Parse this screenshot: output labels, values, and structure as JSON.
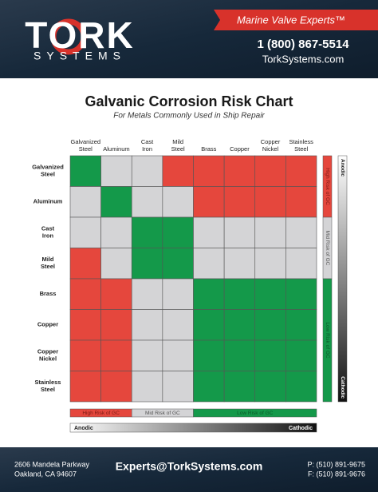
{
  "header": {
    "logo_name": "TORK",
    "logo_sub": "SYSTEMS",
    "tagline": "Marine Valve Experts™",
    "phone": "1 (800) 867-5514",
    "website": "TorkSystems.com"
  },
  "title": "Galvanic Corrosion Risk Chart",
  "subtitle": "For Metals Commonly Used in Ship Repair",
  "metals": [
    [
      "Galvanized",
      "Steel"
    ],
    [
      "Aluminum"
    ],
    [
      "Cast",
      "Iron"
    ],
    [
      "Mild",
      "Steel"
    ],
    [
      "Brass"
    ],
    [
      "Copper"
    ],
    [
      "Copper",
      "Nickel"
    ],
    [
      "Stainless",
      "Steel"
    ]
  ],
  "legend": [
    {
      "label": "High Risk of GC",
      "color": "#e5473d"
    },
    {
      "label": "Mid Risk of GC",
      "color": "#d4d4d6"
    },
    {
      "label": "Low Risk of GC",
      "color": "#14994a"
    }
  ],
  "matrix": [
    [
      2,
      1,
      1,
      0,
      0,
      0,
      0,
      0
    ],
    [
      1,
      2,
      1,
      1,
      0,
      0,
      0,
      0
    ],
    [
      1,
      1,
      2,
      2,
      1,
      1,
      1,
      1
    ],
    [
      0,
      1,
      2,
      2,
      1,
      1,
      1,
      1
    ],
    [
      0,
      0,
      1,
      1,
      2,
      2,
      2,
      2
    ],
    [
      0,
      0,
      1,
      1,
      2,
      2,
      2,
      2
    ],
    [
      0,
      0,
      1,
      1,
      2,
      2,
      2,
      2
    ],
    [
      0,
      0,
      1,
      1,
      2,
      2,
      2,
      2
    ]
  ],
  "scale": {
    "start": "Anodic",
    "end": "Cathodic"
  },
  "footer": {
    "address": [
      "2606 Mandela Parkway",
      "Oakland, CA 94607"
    ],
    "email": "Experts@TorkSystems.com",
    "phone": "P: (510) 891-9675",
    "fax": "F: (510) 891-9676"
  }
}
